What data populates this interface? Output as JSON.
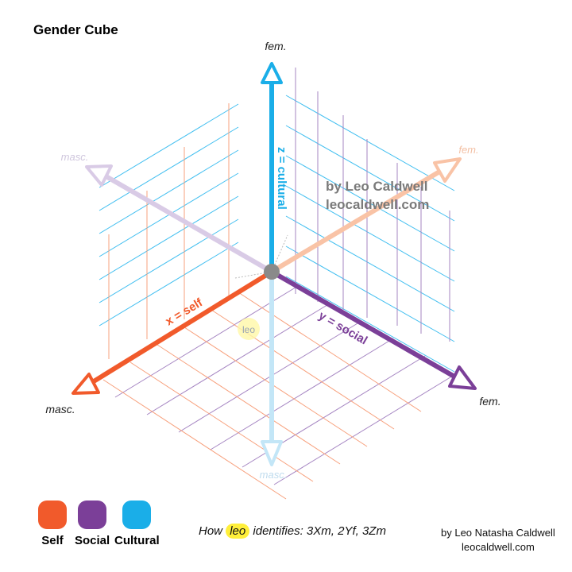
{
  "title": "Gender Cube",
  "axes": {
    "z": {
      "label": "z = cultural",
      "top_end": "fem.",
      "bottom_end": "masc.",
      "color": "#1aaee8"
    },
    "x": {
      "label": "x = self",
      "front_end": "masc.",
      "back_end": "fem.",
      "color": "#f15a2b"
    },
    "y": {
      "label": "y = social",
      "front_end": "fem.",
      "back_end": "masc.",
      "color": "#7b3f98"
    }
  },
  "watermark": {
    "line1": "by Leo Caldwell",
    "line2": "leocaldwell.com"
  },
  "marker": {
    "label": "leo",
    "color": "#ffef3a"
  },
  "legend": [
    {
      "label": "Self",
      "color": "#f15a2b"
    },
    {
      "label": "Social",
      "color": "#7b3f98"
    },
    {
      "label": "Cultural",
      "color": "#1aaee8"
    }
  ],
  "footer": {
    "how_prefix": "How",
    "how_name": "leo",
    "how_suffix": "identifies: 3Xm,  2Yf, 3Zm",
    "credit_line1": "by Leo Natasha Caldwell",
    "credit_line2": "leocaldwell.com"
  }
}
